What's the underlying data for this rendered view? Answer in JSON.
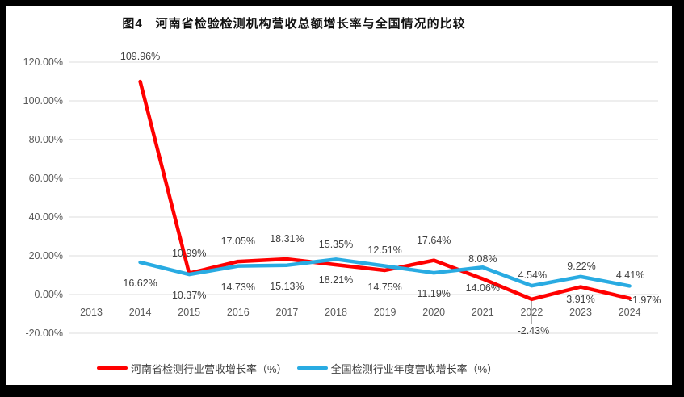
{
  "page": {
    "frame_color": "#000000",
    "chart_background": "#FFFFFF"
  },
  "chart_data": {
    "type": "line",
    "title": "图4　河南省检验检测机构营收总额增长率与全国情况的比较",
    "categories": [
      "2013",
      "2014",
      "2015",
      "2016",
      "2017",
      "2018",
      "2019",
      "2020",
      "2021",
      "2022",
      "2023",
      "2024"
    ],
    "series": [
      {
        "name": "河南省检测行业营收增长率（%）",
        "color": "#FF0000",
        "values": [
          null,
          109.96,
          10.99,
          17.05,
          18.31,
          15.35,
          12.51,
          17.64,
          8.08,
          -2.43,
          3.91,
          -1.97
        ],
        "label_placement": [
          null,
          "above-far",
          "above",
          "above",
          "above",
          "above",
          "above",
          "above",
          "above",
          "below-leader",
          "below-near",
          "right"
        ]
      },
      {
        "name": "全国检测行业年度营收增长率（%）",
        "color": "#29ABE2",
        "values": [
          null,
          16.62,
          10.37,
          14.73,
          15.13,
          18.21,
          14.75,
          11.19,
          14.06,
          4.54,
          9.22,
          4.41
        ],
        "label_placement": [
          null,
          "below",
          "below",
          "below",
          "below",
          "below",
          "below",
          "below",
          "below",
          "above-near",
          "above-near",
          "above-near"
        ]
      }
    ],
    "ylim": [
      -20,
      120
    ],
    "ytick_step": 20,
    "ytick_labels": [
      "120.00%",
      "100.00%",
      "80.00%",
      "60.00%",
      "40.00%",
      "20.00%",
      "0.00%",
      "-20.00%"
    ],
    "label_format": "percent-2dp",
    "grid": true,
    "legend_position": "bottom",
    "gridline_color": "#DCDCDC",
    "axis_label_color": "#595959",
    "data_label_color": "#3F3F3F",
    "leader_line_color": "#A6A6A6",
    "line_width": 4.5
  }
}
